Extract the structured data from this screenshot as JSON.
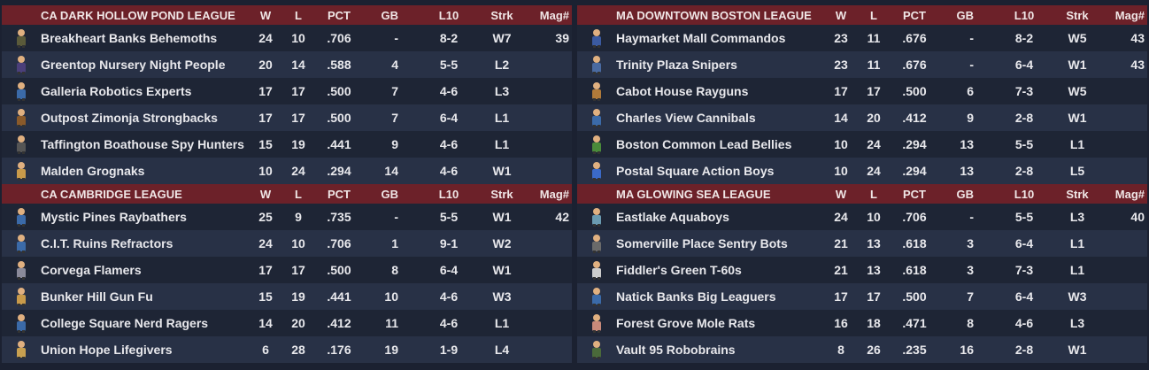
{
  "leagues": [
    {
      "title": "CA DARK HOLLOW POND LEAGUE",
      "cols": {
        "w": "W",
        "l": "L",
        "pct": "PCT",
        "gb": "GB",
        "l10": "L10",
        "strk": "Strk",
        "mag": "Mag#"
      },
      "teams": [
        {
          "icon": "behemoth-icon",
          "color": "#5a5a3a",
          "name": "Breakheart Banks Behemoths",
          "w": "24",
          "l": "10",
          "pct": ".706",
          "gb": "-",
          "l10": "8-2",
          "strk": "W7",
          "mag": "39"
        },
        {
          "icon": "robed-figure-icon",
          "color": "#4b3f7a",
          "name": "Greentop Nursery Night People",
          "w": "20",
          "l": "14",
          "pct": ".588",
          "gb": "4",
          "l10": "5-5",
          "strk": "L2",
          "mag": ""
        },
        {
          "icon": "vault-boy-workbench-icon",
          "color": "#3b6aa8",
          "name": "Galleria Robotics Experts",
          "w": "17",
          "l": "17",
          "pct": ".500",
          "gb": "7",
          "l10": "4-6",
          "strk": "L3",
          "mag": ""
        },
        {
          "icon": "strongback-icon",
          "color": "#8a5a2a",
          "name": "Outpost Zimonja Strongbacks",
          "w": "17",
          "l": "17",
          "pct": ".500",
          "gb": "7",
          "l10": "6-4",
          "strk": "L1",
          "mag": ""
        },
        {
          "icon": "spy-icon",
          "color": "#555555",
          "name": "Taffington Boathouse Spy Hunters",
          "w": "15",
          "l": "19",
          "pct": ".441",
          "gb": "9",
          "l10": "4-6",
          "strk": "L1",
          "mag": ""
        },
        {
          "icon": "grognak-icon",
          "color": "#c89a4a",
          "name": "Malden Grognaks",
          "w": "10",
          "l": "24",
          "pct": ".294",
          "gb": "14",
          "l10": "4-6",
          "strk": "W1",
          "mag": ""
        }
      ]
    },
    {
      "title": "MA DOWNTOWN BOSTON LEAGUE",
      "cols": {
        "w": "W",
        "l": "L",
        "pct": "PCT",
        "gb": "GB",
        "l10": "L10",
        "strk": "Strk",
        "mag": "Mag#"
      },
      "teams": [
        {
          "icon": "commando-icon",
          "color": "#3b5aa0",
          "name": "Haymarket Mall Commandos",
          "w": "23",
          "l": "11",
          "pct": ".676",
          "gb": "-",
          "l10": "8-2",
          "strk": "W5",
          "mag": "43"
        },
        {
          "icon": "sniper-icon",
          "color": "#4a6aa0",
          "name": "Trinity Plaza Snipers",
          "w": "23",
          "l": "11",
          "pct": ".676",
          "gb": "-",
          "l10": "6-4",
          "strk": "W1",
          "mag": "43"
        },
        {
          "icon": "raygun-icon",
          "color": "#b07a3a",
          "name": "Cabot House Rayguns",
          "w": "17",
          "l": "17",
          "pct": ".500",
          "gb": "6",
          "l10": "7-3",
          "strk": "W5",
          "mag": ""
        },
        {
          "icon": "cannibal-icon",
          "color": "#3b6aa8",
          "name": "Charles View Cannibals",
          "w": "14",
          "l": "20",
          "pct": ".412",
          "gb": "9",
          "l10": "2-8",
          "strk": "W1",
          "mag": ""
        },
        {
          "icon": "lead-belly-icon",
          "color": "#4a8a3a",
          "name": "Boston Common Lead Bellies",
          "w": "10",
          "l": "24",
          "pct": ".294",
          "gb": "13",
          "l10": "5-5",
          "strk": "L1",
          "mag": ""
        },
        {
          "icon": "action-boy-icon",
          "color": "#3b6ac8",
          "name": "Postal Square Action Boys",
          "w": "10",
          "l": "24",
          "pct": ".294",
          "gb": "13",
          "l10": "2-8",
          "strk": "L5",
          "mag": ""
        }
      ]
    },
    {
      "title": "CA CAMBRIDGE LEAGUE",
      "cols": {
        "w": "W",
        "l": "L",
        "pct": "PCT",
        "gb": "GB",
        "l10": "L10",
        "strk": "Strk",
        "mag": "Mag#"
      },
      "teams": [
        {
          "icon": "raybather-icon",
          "color": "#3b6aa8",
          "name": "Mystic Pines Raybathers",
          "w": "25",
          "l": "9",
          "pct": ".735",
          "gb": "-",
          "l10": "5-5",
          "strk": "W1",
          "mag": "42"
        },
        {
          "icon": "refractor-icon",
          "color": "#3b6aa8",
          "name": "C.I.T. Ruins Refractors",
          "w": "24",
          "l": "10",
          "pct": ".706",
          "gb": "1",
          "l10": "9-1",
          "strk": "W2",
          "mag": ""
        },
        {
          "icon": "corvega-logo-icon",
          "color": "#8a8a9a",
          "name": "Corvega Flamers",
          "w": "17",
          "l": "17",
          "pct": ".500",
          "gb": "8",
          "l10": "6-4",
          "strk": "W1",
          "mag": ""
        },
        {
          "icon": "gun-fu-icon",
          "color": "#c89a4a",
          "name": "Bunker Hill Gun Fu",
          "w": "15",
          "l": "19",
          "pct": ".441",
          "gb": "10",
          "l10": "4-6",
          "strk": "W3",
          "mag": ""
        },
        {
          "icon": "nerd-rage-icon",
          "color": "#3b6aa8",
          "name": "College Square Nerd Ragers",
          "w": "14",
          "l": "20",
          "pct": ".412",
          "gb": "11",
          "l10": "4-6",
          "strk": "L1",
          "mag": ""
        },
        {
          "icon": "lifegiver-icon",
          "color": "#c8a050",
          "name": "Union Hope Lifegivers",
          "w": "6",
          "l": "28",
          "pct": ".176",
          "gb": "19",
          "l10": "1-9",
          "strk": "L4",
          "mag": ""
        }
      ]
    },
    {
      "title": "MA GLOWING SEA LEAGUE",
      "cols": {
        "w": "W",
        "l": "L",
        "pct": "PCT",
        "gb": "GB",
        "l10": "L10",
        "strk": "Strk",
        "mag": "Mag#"
      },
      "teams": [
        {
          "icon": "aquaboy-icon",
          "color": "#6a9ab0",
          "name": "Eastlake Aquaboys",
          "w": "24",
          "l": "10",
          "pct": ".706",
          "gb": "-",
          "l10": "5-5",
          "strk": "L3",
          "mag": "40"
        },
        {
          "icon": "sentry-bot-icon",
          "color": "#6a6a6a",
          "name": "Somerville Place Sentry Bots",
          "w": "21",
          "l": "13",
          "pct": ".618",
          "gb": "3",
          "l10": "6-4",
          "strk": "L1",
          "mag": ""
        },
        {
          "icon": "t60-logo-icon",
          "color": "#cccccc",
          "name": "Fiddler's Green T-60s",
          "w": "21",
          "l": "13",
          "pct": ".618",
          "gb": "3",
          "l10": "7-3",
          "strk": "L1",
          "mag": ""
        },
        {
          "icon": "big-leaguer-icon",
          "color": "#3b6aa8",
          "name": "Natick Banks Big Leaguers",
          "w": "17",
          "l": "17",
          "pct": ".500",
          "gb": "7",
          "l10": "6-4",
          "strk": "W3",
          "mag": ""
        },
        {
          "icon": "mole-rat-icon",
          "color": "#c88a7a",
          "name": "Forest Grove Mole Rats",
          "w": "16",
          "l": "18",
          "pct": ".471",
          "gb": "8",
          "l10": "4-6",
          "strk": "L3",
          "mag": ""
        },
        {
          "icon": "robobrain-icon",
          "color": "#4a6a3a",
          "name": "Vault 95 Robobrains",
          "w": "8",
          "l": "26",
          "pct": ".235",
          "gb": "16",
          "l10": "2-8",
          "strk": "W1",
          "mag": ""
        }
      ]
    }
  ]
}
